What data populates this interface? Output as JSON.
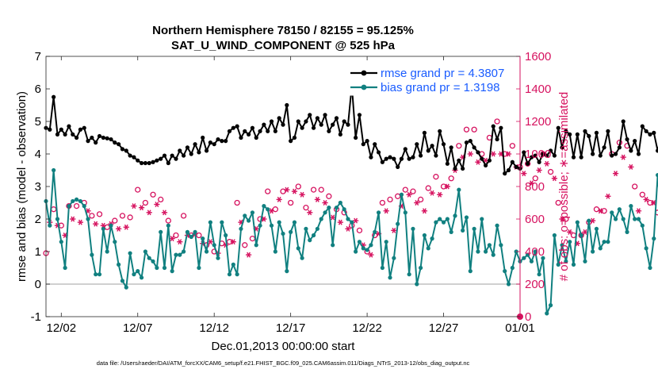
{
  "chart_data": {
    "type": "line",
    "title": "Northern Hemisphere 78150 / 82155 = 95.125%",
    "subtitle": "SAT_U_WIND_COMPONENT @ 525 hPa",
    "xlabel": "Dec.01,2013 00:00:00 start",
    "ylabel": "rmse and bias (model - observation)",
    "y2label": "# of obs: o=possible; ∗=assimilated",
    "footnote": "data file: /Users/raeder/DAI/ATM_forcXX/CAM6_setup/f.e21.FHIST_BGC.f09_025.CAM6assim.011/Diags_NTrS_2013-12/obs_diag_output.nc",
    "xlim": [
      0,
      31
    ],
    "ylim": [
      -1,
      7
    ],
    "y2lim": [
      0,
      1600
    ],
    "x_ticks": [
      1,
      6,
      11,
      16,
      21,
      26,
      31
    ],
    "x_tick_labels": [
      "12/02",
      "12/07",
      "12/12",
      "12/17",
      "12/22",
      "12/27",
      "01/01"
    ],
    "y_ticks": [
      -1,
      0,
      1,
      2,
      3,
      4,
      5,
      6,
      7
    ],
    "y2_ticks": [
      0,
      200,
      400,
      600,
      800,
      1000,
      1200,
      1400,
      1600
    ],
    "x_unit": "days since Dec.01,2013 00:00",
    "x_step": 0.25,
    "zero_line": true,
    "legend_position": "top-right",
    "colors": {
      "rmse": "#000000",
      "bias": "#118080",
      "obs": "#d6125f",
      "zero": "#c0c0c0",
      "legend_text": "#1a5cff"
    },
    "series": [
      {
        "name": "rmse grand pr = 4.3807",
        "axis": "left",
        "values": [
          4.8,
          4.75,
          5.75,
          4.6,
          4.75,
          4.6,
          4.85,
          4.6,
          4.5,
          4.75,
          4.8,
          4.4,
          4.5,
          4.35,
          4.55,
          4.5,
          4.48,
          4.45,
          4.35,
          4.3,
          4.15,
          4.1,
          3.95,
          3.9,
          3.8,
          3.72,
          3.72,
          3.72,
          3.75,
          3.8,
          3.85,
          3.95,
          3.72,
          3.95,
          3.85,
          4.1,
          3.95,
          4.2,
          4.0,
          4.3,
          4.05,
          4.5,
          4.1,
          4.35,
          4.3,
          4.45,
          4.4,
          4.4,
          4.7,
          4.8,
          4.85,
          4.5,
          4.7,
          4.6,
          4.8,
          4.5,
          4.7,
          4.9,
          4.7,
          5.0,
          4.7,
          5.1,
          4.9,
          5.5,
          4.4,
          4.5,
          5.0,
          4.8,
          5.0,
          5.2,
          4.8,
          5.1,
          4.9,
          5.2,
          4.7,
          4.9,
          5.1,
          4.6,
          5.0,
          4.9,
          6.1,
          4.5,
          5.2,
          4.3,
          4.4,
          3.9,
          4.3,
          4.05,
          3.75,
          3.85,
          3.9,
          3.85,
          3.6,
          3.85,
          4.15,
          3.85,
          3.9,
          4.3,
          3.95,
          4.65,
          4.1,
          4.25,
          3.95,
          4.7,
          4.3,
          3.7,
          4.2,
          3.55,
          3.8,
          3.55,
          4.35,
          4.4,
          4.2,
          4.05,
          3.85,
          3.65,
          3.8,
          4.85,
          4.45,
          4.8,
          3.4,
          3.5,
          3.75,
          3.6,
          3.55,
          4.05,
          3.7,
          3.9,
          3.95,
          3.75,
          4.0,
          3.95,
          4.1,
          3.95,
          4.8,
          4.2,
          4.7,
          4.6,
          3.9,
          4.6,
          3.9,
          4.7,
          4.55,
          4.0,
          4.65,
          3.95,
          4.2,
          4.7,
          3.95,
          4.0,
          4.2,
          5.0,
          4.45,
          4.1,
          4.4,
          4.0,
          4.85,
          4.7,
          4.6,
          4.65,
          4.1,
          4.55,
          6.25,
          5.1,
          4.8
        ]
      },
      {
        "name": "bias grand pr = 1.3198",
        "axis": "left",
        "values": [
          2.55,
          1.8,
          3.5,
          2.0,
          1.3,
          0.5,
          2.4,
          2.55,
          2.6,
          2.55,
          2.4,
          2.0,
          0.9,
          0.3,
          0.3,
          1.7,
          1.0,
          1.8,
          1.3,
          0.6,
          0.1,
          -0.1,
          0.95,
          0.3,
          0.4,
          0.2,
          1.0,
          0.8,
          0.7,
          0.5,
          1.6,
          0.5,
          1.8,
          0.4,
          0.9,
          0.9,
          1.0,
          1.6,
          1.45,
          1.6,
          0.5,
          1.4,
          1.0,
          1.9,
          1.2,
          0.8,
          1.9,
          1.5,
          0.3,
          0.6,
          0.3,
          1.7,
          2.1,
          1.95,
          2.2,
          1.2,
          1.8,
          2.4,
          2.3,
          1.8,
          1.0,
          1.9,
          1.55,
          0.4,
          1.6,
          1.9,
          1.1,
          0.8,
          1.7,
          1.35,
          1.5,
          1.7,
          2.0,
          2.2,
          2.35,
          1.2,
          2.35,
          2.5,
          2.3,
          2.0,
          1.9,
          1.0,
          1.3,
          1.1,
          1.05,
          1.2,
          1.6,
          2.2,
          0.5,
          1.3,
          0.2,
          0.8,
          1.85,
          2.75,
          2.2,
          0.3,
          1.7,
          0.0,
          0.5,
          1.5,
          1.1,
          1.4,
          1.9,
          2.0,
          1.9,
          2.0,
          1.6,
          2.1,
          2.9,
          1.65,
          2.05,
          0.4,
          1.7,
          1.0,
          2.0,
          1.0,
          1.2,
          0.9,
          1.8,
          1.2,
          0.4,
          0.0,
          0.5,
          1.0,
          0.7,
          0.8,
          0.9,
          0.7,
          1.0,
          0.3,
          0.8,
          -0.9,
          -0.65,
          1.5,
          0.6,
          1.2,
          0.7,
          1.3,
          0.6,
          1.9,
          1.5,
          0.7,
          1.95,
          1.0,
          1.7,
          1.1,
          1.3,
          1.3,
          2.2,
          2.0,
          2.3,
          2.0,
          1.6,
          2.4,
          2.0,
          2.0,
          1.8,
          1.1,
          0.5,
          1.4,
          3.35,
          2.0,
          2.2
        ]
      },
      {
        "name": "possible",
        "axis": "right",
        "marker": "o",
        "values": [
          390,
          630,
          660,
          600,
          560,
          510,
          680,
          640,
          680,
          620,
          700,
          710,
          620,
          590,
          630,
          590,
          550,
          600,
          590,
          560,
          620,
          570,
          610,
          720,
          780,
          700,
          700,
          680,
          750,
          750,
          720,
          670,
          590,
          500,
          500,
          480,
          620,
          520,
          500,
          540,
          500,
          470,
          440,
          480,
          400,
          400,
          450,
          460,
          460,
          480,
          700,
          610,
          440,
          400,
          480,
          570,
          600,
          640,
          770,
          700,
          660,
          780,
          770,
          850,
          700,
          840,
          800,
          810,
          670,
          690,
          780,
          780,
          780,
          750,
          740,
          650,
          660,
          620,
          640,
          570,
          560,
          630,
          530,
          460,
          400,
          400,
          500,
          540,
          700,
          700,
          720,
          560,
          740,
          730,
          780,
          810,
          770,
          750,
          720,
          700,
          790,
          820,
          860,
          810,
          800,
          860,
          850,
          1000,
          1050,
          1200,
          1150,
          1200,
          1150,
          1050,
          1000,
          1060,
          1100,
          1150,
          1200,
          1200,
          1000,
          1150,
          1050,
          1000,
          920,
          950,
          940,
          880,
          850,
          980,
          1000,
          1030,
          890,
          900,
          700,
          640,
          600,
          560,
          500,
          480,
          500,
          560,
          580,
          640,
          660,
          700,
          650,
          800,
          1000,
          960,
          1070,
          1100,
          1050,
          1000,
          800,
          700,
          750,
          780,
          700,
          760,
          640,
          620,
          620,
          600,
          580,
          560,
          540,
          620,
          660,
          700,
          720,
          760,
          800,
          780
        ]
      },
      {
        "name": "assimilated",
        "axis": "right",
        "marker": "*",
        "values": [
          390,
          580,
          600,
          560,
          540,
          500,
          620,
          600,
          620,
          580,
          640,
          650,
          590,
          570,
          600,
          560,
          530,
          570,
          560,
          540,
          600,
          550,
          580,
          680,
          700,
          670,
          650,
          640,
          700,
          690,
          680,
          640,
          560,
          480,
          470,
          460,
          580,
          500,
          480,
          510,
          470,
          450,
          420,
          460,
          380,
          390,
          430,
          440,
          440,
          460,
          650,
          580,
          420,
          380,
          450,
          540,
          560,
          600,
          700,
          650,
          620,
          720,
          720,
          780,
          650,
          770,
          740,
          750,
          630,
          640,
          720,
          720,
          720,
          700,
          690,
          610,
          620,
          580,
          600,
          540,
          530,
          590,
          500,
          440,
          380,
          380,
          470,
          510,
          650,
          650,
          670,
          530,
          690,
          680,
          720,
          750,
          710,
          700,
          670,
          650,
          730,
          760,
          800,
          750,
          740,
          800,
          790,
          900,
          940,
          980,
          960,
          1000,
          980,
          950,
          910,
          960,
          990,
          1000,
          1000,
          1000,
          920,
          1000,
          950,
          920,
          860,
          880,
          870,
          820,
          800,
          900,
          920,
          940,
          840,
          850,
          650,
          600,
          560,
          520,
          470,
          450,
          470,
          520,
          540,
          590,
          610,
          650,
          610,
          740,
          900,
          880,
          960,
          980,
          950,
          920,
          740,
          650,
          700,
          720,
          650,
          700,
          600,
          580,
          580,
          560,
          540,
          520,
          500,
          580,
          610,
          650,
          670,
          700,
          740,
          720
        ]
      }
    ]
  }
}
